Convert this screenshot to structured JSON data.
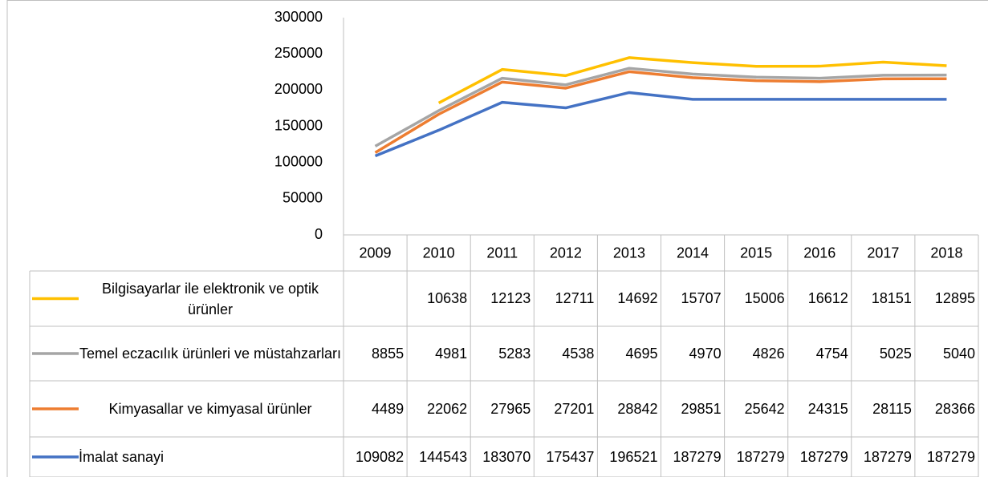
{
  "chart_data": {
    "type": "line",
    "stacked": true,
    "categories": [
      "2009",
      "2010",
      "2011",
      "2012",
      "2013",
      "2014",
      "2015",
      "2016",
      "2017",
      "2018"
    ],
    "series": [
      {
        "name": "Bilgisayarlar ile elektronik ve optik ürünler",
        "color": "#ffc000",
        "values": [
          null,
          10638,
          12123,
          12711,
          14692,
          15707,
          15006,
          16612,
          18151,
          12895
        ]
      },
      {
        "name": "Temel eczacılık ürünleri ve müstahzarları",
        "color": "#a5a5a5",
        "values": [
          8855,
          4981,
          5283,
          4538,
          4695,
          4970,
          4826,
          4754,
          5025,
          5040
        ]
      },
      {
        "name": "Kimyasallar ve kimyasal ürünler",
        "color": "#ed7d31",
        "values": [
          4489,
          22062,
          27965,
          27201,
          28842,
          29851,
          25642,
          24315,
          28115,
          28366
        ]
      },
      {
        "name": "İmalat sanayi",
        "color": "#4472c4",
        "values": [
          109082,
          144543,
          183070,
          175437,
          196521,
          187279,
          187279,
          187279,
          187279,
          187279
        ]
      }
    ],
    "ylim": [
      0,
      300000
    ],
    "yticks": [
      0,
      50000,
      100000,
      150000,
      200000,
      250000,
      300000
    ],
    "grid": false,
    "data_table": true
  }
}
